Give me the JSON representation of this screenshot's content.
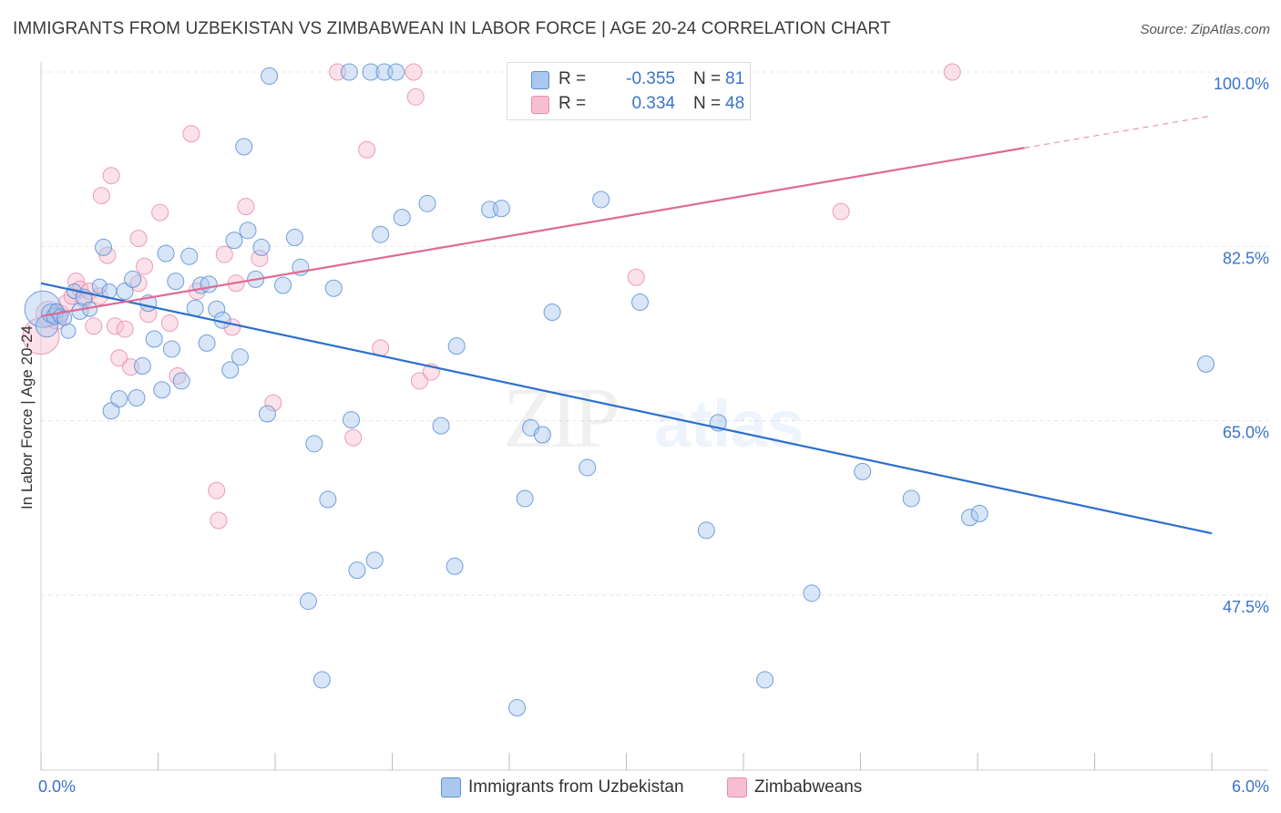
{
  "title": "IMMIGRANTS FROM UZBEKISTAN VS ZIMBABWEAN IN LABOR FORCE | AGE 20-24 CORRELATION CHART",
  "source": "Source: ZipAtlas.com",
  "watermark": {
    "zip": "ZIP",
    "atlas": "atlas"
  },
  "legend": {
    "r_label": "R =",
    "n_label": "N =",
    "series": [
      {
        "r": "-0.355",
        "n": "81"
      },
      {
        "r": "0.334",
        "n": "48"
      }
    ]
  },
  "colors": {
    "blue_fill": "#aac8ee",
    "blue_stroke": "#5b8fd6",
    "blue_line": "#2b70cc",
    "pink_fill": "#f6bfd1",
    "pink_stroke": "#e98cab",
    "pink_line": "#e06a93",
    "tick_label": "#3a74c8",
    "grid": "#e6e6e6"
  },
  "chart_data": {
    "type": "scatter",
    "title": "IMMIGRANTS FROM UZBEKISTAN VS ZIMBABWEAN IN LABOR FORCE | AGE 20-24 CORRELATION CHART",
    "xlabel": "",
    "ylabel": "In Labor Force | Age 20-24",
    "xlim": [
      0,
      6
    ],
    "ylim": [
      30,
      100
    ],
    "x_tick_labels": [
      "0.0%",
      "6.0%"
    ],
    "y_ticks": [
      47.5,
      65.0,
      82.5,
      100.0
    ],
    "y_tick_labels": [
      "47.5%",
      "65.0%",
      "82.5%",
      "100.0%"
    ],
    "grid": true,
    "series": [
      {
        "name": "Immigrants from Uzbekistan",
        "color": "blue",
        "r": -0.355,
        "n": 81,
        "trend": {
          "x": [
            0,
            6
          ],
          "y": [
            78.8,
            53.7
          ],
          "solid_until": 6
        },
        "points": [
          [
            0.01,
            76.2,
            20
          ],
          [
            0.03,
            74.5,
            12
          ],
          [
            0.05,
            75.8,
            10
          ],
          [
            0.07,
            75.5,
            9
          ],
          [
            0.08,
            76.0,
            8
          ],
          [
            0.1,
            75.5,
            8
          ],
          [
            0.12,
            75.3,
            8
          ],
          [
            0.14,
            74.0,
            8
          ],
          [
            0.17,
            78.0,
            8
          ],
          [
            0.2,
            76.0,
            9
          ],
          [
            0.22,
            77.4,
            9
          ],
          [
            0.25,
            76.2,
            8
          ],
          [
            0.3,
            78.5,
            8
          ],
          [
            0.32,
            82.4,
            9
          ],
          [
            0.35,
            78.0,
            8
          ],
          [
            0.36,
            66.0,
            9
          ],
          [
            0.4,
            67.2,
            9
          ],
          [
            0.43,
            78.0,
            9
          ],
          [
            0.47,
            79.2,
            9
          ],
          [
            0.49,
            67.3,
            9
          ],
          [
            0.52,
            70.5,
            9
          ],
          [
            0.55,
            76.8,
            9
          ],
          [
            0.58,
            73.2,
            9
          ],
          [
            0.62,
            68.1,
            9
          ],
          [
            0.64,
            81.8,
            9
          ],
          [
            0.67,
            72.2,
            9
          ],
          [
            0.69,
            79.0,
            9
          ],
          [
            0.72,
            69.0,
            9
          ],
          [
            0.76,
            81.5,
            9
          ],
          [
            0.79,
            76.3,
            9
          ],
          [
            0.82,
            78.6,
            9
          ],
          [
            0.85,
            72.8,
            9
          ],
          [
            0.86,
            78.7,
            9
          ],
          [
            0.9,
            76.2,
            9
          ],
          [
            0.93,
            75.1,
            9
          ],
          [
            0.97,
            70.1,
            9
          ],
          [
            0.99,
            83.1,
            9
          ],
          [
            1.02,
            71.4,
            9
          ],
          [
            1.04,
            92.5,
            9
          ],
          [
            1.06,
            84.1,
            9
          ],
          [
            1.1,
            79.2,
            9
          ],
          [
            1.13,
            82.4,
            9
          ],
          [
            1.16,
            65.7,
            9
          ],
          [
            1.17,
            99.6,
            9
          ],
          [
            1.24,
            78.6,
            9
          ],
          [
            1.3,
            83.4,
            9
          ],
          [
            1.33,
            80.4,
            9
          ],
          [
            1.37,
            46.9,
            9
          ],
          [
            1.4,
            62.7,
            9
          ],
          [
            1.44,
            39.0,
            9
          ],
          [
            1.47,
            57.1,
            9
          ],
          [
            1.5,
            78.3,
            9
          ],
          [
            1.58,
            100.0,
            9
          ],
          [
            1.59,
            65.1,
            9
          ],
          [
            1.62,
            50.0,
            9
          ],
          [
            1.69,
            100.0,
            9
          ],
          [
            1.71,
            51.0,
            9
          ],
          [
            1.74,
            83.7,
            9
          ],
          [
            1.76,
            100.0,
            9
          ],
          [
            1.82,
            100.0,
            9
          ],
          [
            1.85,
            85.4,
            9
          ],
          [
            1.98,
            86.8,
            9
          ],
          [
            2.05,
            64.5,
            9
          ],
          [
            2.12,
            50.4,
            9
          ],
          [
            2.13,
            72.5,
            9
          ],
          [
            2.3,
            86.2,
            9
          ],
          [
            2.36,
            86.3,
            9
          ],
          [
            2.44,
            36.2,
            9
          ],
          [
            2.48,
            57.2,
            9
          ],
          [
            2.51,
            64.3,
            9
          ],
          [
            2.57,
            63.6,
            9
          ],
          [
            2.62,
            75.9,
            9
          ],
          [
            2.8,
            60.3,
            9
          ],
          [
            2.87,
            87.2,
            9
          ],
          [
            3.07,
            76.9,
            9
          ],
          [
            3.41,
            54.0,
            9
          ],
          [
            3.47,
            64.8,
            9
          ],
          [
            3.71,
            39.0,
            9
          ],
          [
            3.95,
            47.7,
            9
          ],
          [
            4.21,
            59.9,
            9
          ],
          [
            4.46,
            57.2,
            9
          ],
          [
            4.76,
            55.3,
            9
          ],
          [
            4.81,
            55.7,
            9
          ],
          [
            5.97,
            70.7,
            9
          ]
        ]
      },
      {
        "name": "Zimbabweans",
        "color": "pink",
        "r": 0.334,
        "n": 48,
        "trend": {
          "x": [
            0,
            6
          ],
          "y": [
            75.5,
            95.6
          ],
          "solid_until": 5.04
        },
        "points": [
          [
            0.0,
            73.5,
            20
          ],
          [
            0.04,
            75.7,
            14
          ],
          [
            0.08,
            75.2,
            11
          ],
          [
            0.1,
            75.8,
            9
          ],
          [
            0.13,
            76.8,
            9
          ],
          [
            0.16,
            77.5,
            9
          ],
          [
            0.18,
            79.0,
            9
          ],
          [
            0.2,
            78.2,
            9
          ],
          [
            0.22,
            77.2,
            9
          ],
          [
            0.25,
            78.0,
            9
          ],
          [
            0.27,
            74.5,
            9
          ],
          [
            0.3,
            77.5,
            9
          ],
          [
            0.31,
            87.6,
            9
          ],
          [
            0.34,
            81.6,
            9
          ],
          [
            0.36,
            89.6,
            9
          ],
          [
            0.38,
            74.5,
            9
          ],
          [
            0.4,
            71.3,
            9
          ],
          [
            0.43,
            74.2,
            9
          ],
          [
            0.46,
            70.4,
            9
          ],
          [
            0.5,
            78.8,
            9
          ],
          [
            0.5,
            83.3,
            9
          ],
          [
            0.53,
            80.5,
            9
          ],
          [
            0.55,
            75.7,
            9
          ],
          [
            0.61,
            85.9,
            9
          ],
          [
            0.66,
            74.8,
            9
          ],
          [
            0.7,
            69.5,
            9
          ],
          [
            0.77,
            93.8,
            9
          ],
          [
            0.8,
            78.0,
            9
          ],
          [
            0.9,
            58.0,
            9
          ],
          [
            0.91,
            55.0,
            9
          ],
          [
            0.94,
            81.7,
            9
          ],
          [
            0.98,
            74.4,
            9
          ],
          [
            1.0,
            78.8,
            9
          ],
          [
            1.05,
            86.5,
            9
          ],
          [
            1.12,
            81.3,
            9
          ],
          [
            1.19,
            66.8,
            9
          ],
          [
            1.52,
            100.0,
            9
          ],
          [
            1.6,
            63.3,
            9
          ],
          [
            1.67,
            92.2,
            9
          ],
          [
            1.74,
            72.3,
            9
          ],
          [
            1.91,
            100.0,
            9
          ],
          [
            1.92,
            97.5,
            9
          ],
          [
            1.94,
            69.0,
            9
          ],
          [
            2.0,
            69.9,
            9
          ],
          [
            3.05,
            79.4,
            9
          ],
          [
            4.1,
            86.0,
            9
          ],
          [
            4.67,
            100.0,
            9
          ]
        ]
      }
    ]
  },
  "bottom_legend": [
    {
      "label": "Immigrants from Uzbekistan"
    },
    {
      "label": "Zimbabweans"
    }
  ]
}
